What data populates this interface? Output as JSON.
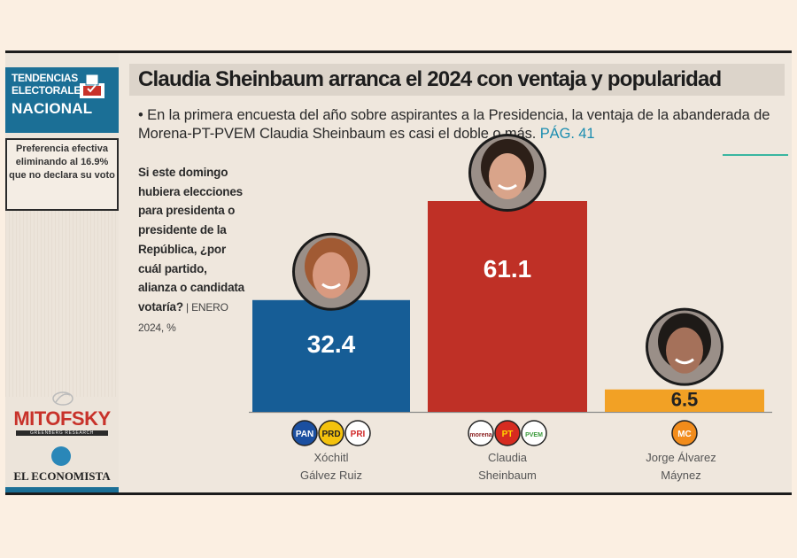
{
  "sidebar": {
    "brand_line1": "TENDENCIAS",
    "brand_line2": "ELECTORALES",
    "brand_line3": "NACIONAL",
    "note": "Preferencia efectiva eliminando al 16.9% que no declara su voto",
    "mitofsky": "MITOFSKY",
    "mitofsky_tagline": "GREENBERG RESEARCH",
    "economista": "EL ECONOMISTA",
    "accent": "#1b6f96"
  },
  "header": {
    "title": "Claudia Sheinbaum arranca el 2024 con ventaja y popularidad",
    "subtitle": "• En la primera encuesta del año sobre aspirantes a la Presidencia, la ventaja de la abanderada de Morena-PT-PVEM Claudia Sheinbaum es casi el doble o más.",
    "page_ref": "PÁG. 41"
  },
  "question": {
    "text": "Si este domingo hubiera elecciones para presidenta o presidente de la República, ¿por cuál partido, alianza o candidata votaría?",
    "source": " | ENERO 2024, %"
  },
  "chart_data": {
    "type": "bar",
    "categories": [
      "Xóchitl Gálvez Ruiz",
      "Claudia Sheinbaum",
      "Jorge Álvarez Máynez"
    ],
    "values": [
      32.4,
      61.1,
      6.5
    ],
    "labels": [
      "32.4",
      "61.1",
      "6.5"
    ],
    "colors": [
      "#165d96",
      "#bf3026",
      "#f2a125"
    ],
    "ylim": [
      0,
      61.1
    ],
    "parties": [
      [
        "PAN",
        "PRD",
        "PRI"
      ],
      [
        "morena",
        "PT",
        "PVEM"
      ],
      [
        "MC"
      ]
    ],
    "candidate_lines": [
      [
        "Xóchitl",
        "Gálvez Ruiz"
      ],
      [
        "Claudia",
        "Sheinbaum"
      ],
      [
        "Jorge Álvarez",
        "Máynez"
      ]
    ]
  }
}
